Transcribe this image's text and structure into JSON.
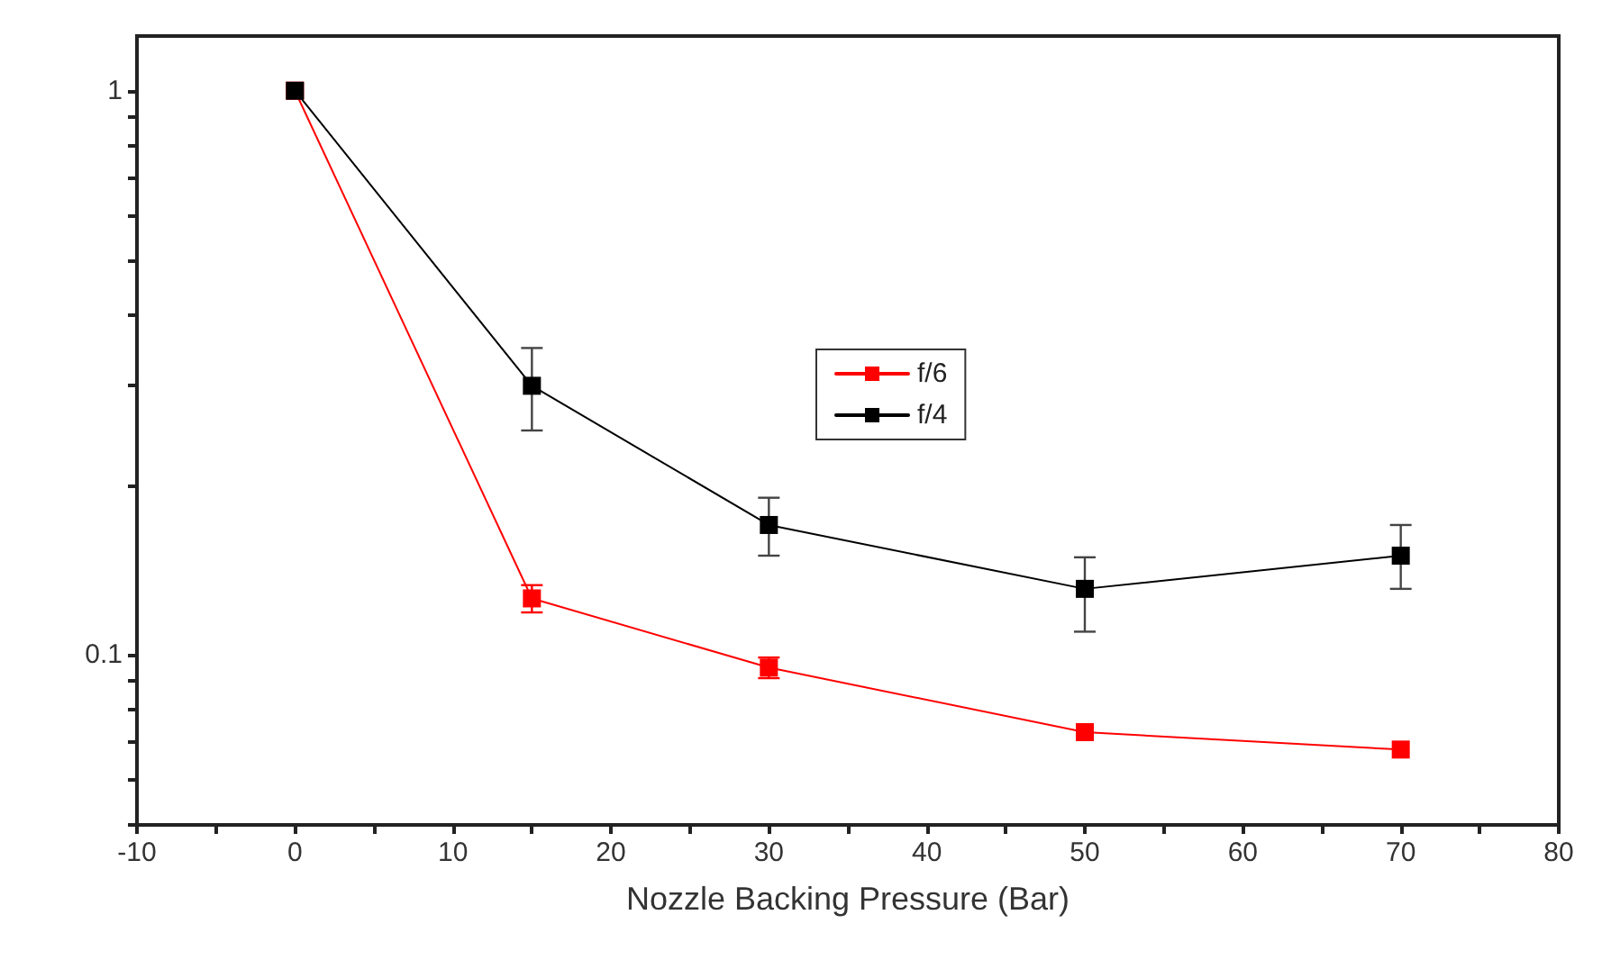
{
  "chart_data": {
    "type": "line",
    "xlabel": "Nozzle Backing Pressure (Bar)",
    "xlim": [
      -10,
      80
    ],
    "xticks": [
      -10,
      {
        "value": -5,
        "label": null
      },
      0,
      {
        "value": 5,
        "label": null
      },
      10,
      {
        "value": 15,
        "label": null
      },
      20,
      {
        "value": 25,
        "label": null
      },
      30,
      {
        "value": 35,
        "label": null
      },
      40,
      {
        "value": 45,
        "label": null
      },
      50,
      {
        "value": 55,
        "label": null
      },
      60,
      {
        "value": 65,
        "label": null
      },
      70,
      {
        "value": 75,
        "label": null
      },
      80
    ],
    "ylim": [
      0.05,
      1.25
    ],
    "yticks": [
      {
        "value": 0.05,
        "label": null
      },
      {
        "value": 0.06,
        "label": null
      },
      {
        "value": 0.07,
        "label": null
      },
      {
        "value": 0.08,
        "label": null
      },
      {
        "value": 0.09,
        "label": null
      },
      0.1,
      {
        "value": 0.2,
        "label": null
      },
      {
        "value": 0.3,
        "label": null
      },
      {
        "value": 0.4,
        "label": null
      },
      {
        "value": 0.5,
        "label": null
      },
      {
        "value": 0.6,
        "label": null
      },
      {
        "value": 0.7,
        "label": null
      },
      {
        "value": 0.8,
        "label": null
      },
      {
        "value": 0.9,
        "label": null
      },
      1
    ],
    "log": "y",
    "grid": false,
    "legend": "right",
    "marker": "square",
    "line_style": "solid",
    "x": [
      0,
      15,
      30,
      50,
      70
    ],
    "series": [
      {
        "name": "f/6",
        "color": "#ff0000",
        "values": [
          1,
          0.126,
          0.095,
          0.073,
          0.068
        ],
        "errors": [
          null,
          0.007,
          0.004,
          null,
          null
        ]
      },
      {
        "name": "f/4",
        "color": "#000000",
        "values": [
          1,
          0.3,
          0.17,
          0.131,
          0.15
        ],
        "errors": [
          null,
          [
            0.25,
            0.35
          ],
          [
            0.15,
            0.19
          ],
          [
            0.11,
            0.149
          ],
          [
            0.131,
            0.17
          ]
        ]
      }
    ]
  }
}
